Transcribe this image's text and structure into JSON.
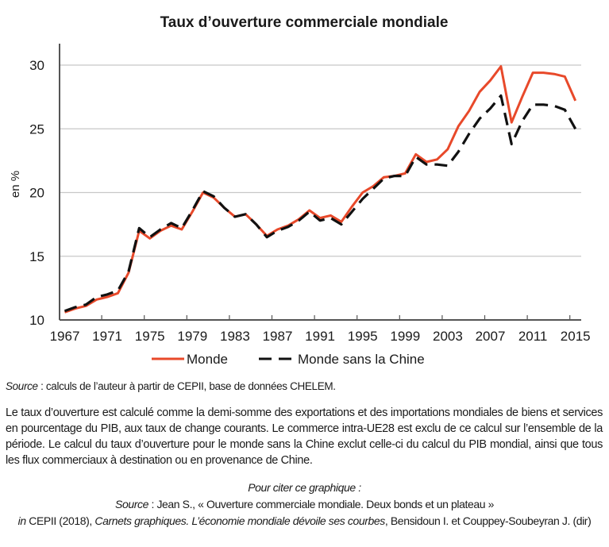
{
  "chart_data": {
    "type": "line",
    "title": "Taux d’ouverture commerciale mondiale",
    "xlabel": "",
    "ylabel": "en %",
    "ylim": [
      10,
      30
    ],
    "yticks": [
      10,
      15,
      20,
      25,
      30
    ],
    "xlim": [
      1967,
      2015
    ],
    "xticks": [
      "1967",
      "1971",
      "1975",
      "1979",
      "1983",
      "1987",
      "1991",
      "1995",
      "1999",
      "2003",
      "2007",
      "2011",
      "2015"
    ],
    "grid": "horizontal",
    "legend_position": "bottom",
    "x": [
      1967,
      1968,
      1969,
      1970,
      1971,
      1972,
      1973,
      1974,
      1975,
      1976,
      1977,
      1978,
      1979,
      1980,
      1981,
      1982,
      1983,
      1984,
      1985,
      1986,
      1987,
      1988,
      1989,
      1990,
      1991,
      1992,
      1993,
      1994,
      1995,
      1996,
      1997,
      1998,
      1999,
      2000,
      2001,
      2002,
      2003,
      2004,
      2005,
      2006,
      2007,
      2008,
      2009,
      2010,
      2011,
      2012,
      2013,
      2014,
      2015
    ],
    "series": [
      {
        "name": "Monde",
        "color": "#e8492a",
        "style": "solid",
        "values": [
          10.6,
          10.9,
          11.1,
          11.6,
          11.8,
          12.1,
          13.7,
          17.0,
          16.4,
          17.0,
          17.4,
          17.1,
          18.5,
          20.0,
          19.6,
          18.8,
          18.1,
          18.3,
          17.5,
          16.6,
          17.1,
          17.4,
          17.9,
          18.6,
          18.0,
          18.2,
          17.7,
          18.9,
          20.0,
          20.5,
          21.2,
          21.3,
          21.5,
          23.0,
          22.4,
          22.6,
          23.4,
          25.2,
          26.4,
          27.9,
          28.8,
          29.9,
          25.5,
          27.5,
          29.4,
          29.4,
          29.3,
          29.1,
          27.2
        ]
      },
      {
        "name": "Monde sans la Chine",
        "color": "#111111",
        "style": "dashed",
        "values": [
          10.7,
          11.0,
          11.2,
          11.8,
          12.0,
          12.3,
          13.8,
          17.2,
          16.5,
          17.1,
          17.6,
          17.2,
          18.6,
          20.1,
          19.7,
          18.8,
          18.1,
          18.3,
          17.5,
          16.5,
          17.0,
          17.3,
          17.8,
          18.5,
          17.8,
          18.0,
          17.5,
          18.5,
          19.5,
          20.3,
          21.1,
          21.3,
          21.3,
          22.8,
          22.2,
          22.2,
          22.1,
          23.2,
          24.6,
          25.8,
          26.6,
          27.6,
          23.8,
          25.6,
          26.9,
          26.9,
          26.8,
          26.5,
          25.0
        ]
      }
    ]
  },
  "notes": {
    "source_label": "Source",
    "source_text": " : calculs de l’auteur à partir de CEPII, base de données CHELEM.",
    "description": "Le taux d’ouverture est calculé comme la demi-somme des exportations et des importations mondiales de biens et services en pourcentage du PIB, aux taux de change courants. Le commerce intra-UE28 est exclu de ce calcul sur l’ensemble de la période. Le calcul du taux d’ouverture pour le monde sans la Chine exclut celle-ci du calcul du PIB mondial, ainsi que tous les flux commerciaux à destination ou en provenance de Chine."
  },
  "citation": {
    "heading": "Pour citer ce graphique :",
    "source_label": "Source",
    "source_text": " : Jean S., « Ouverture commerciale mondiale. Deux bonds et un plateau »",
    "in_label": "in",
    "publisher": " CEPII (2018), ",
    "book_title": "Carnets graphiques. L’économie mondiale dévoile ses courbes",
    "editors": ", Bensidoun I. et Couppey-Soubeyran J. (dir)"
  }
}
